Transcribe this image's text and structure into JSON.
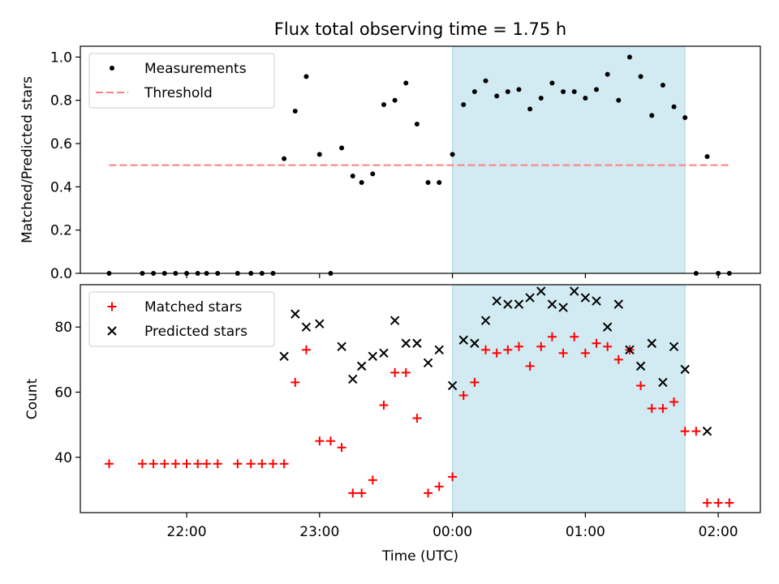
{
  "chart_data": [
    {
      "type": "scatter",
      "title": "Flux total observing time = 1.75 h",
      "xlabel": "",
      "ylabel": "Matched/Predicted stars",
      "xlim": [
        "21:12",
        "02:19"
      ],
      "ylim": [
        0,
        1.05
      ],
      "yticks": [
        "0.0",
        "0.2",
        "0.4",
        "0.6",
        "0.8",
        "1.0"
      ],
      "grid": false,
      "legend_position": "top-left",
      "shaded_interval": {
        "start": "00:00",
        "end": "01:45",
        "color": "#add8e6"
      },
      "series": [
        {
          "name": "Measurements",
          "marker": "dot",
          "color": "#000000",
          "points": [
            [
              "21:25",
              0.0
            ],
            [
              "21:40",
              0.0
            ],
            [
              "21:45",
              0.0
            ],
            [
              "21:50",
              0.0
            ],
            [
              "21:55",
              0.0
            ],
            [
              "22:00",
              0.0
            ],
            [
              "22:05",
              0.0
            ],
            [
              "22:09",
              0.0
            ],
            [
              "22:14",
              0.0
            ],
            [
              "22:23",
              0.0
            ],
            [
              "22:29",
              0.0
            ],
            [
              "22:34",
              0.0
            ],
            [
              "22:39",
              0.0
            ],
            [
              "22:44",
              0.53
            ],
            [
              "22:49",
              0.75
            ],
            [
              "22:54",
              0.91
            ],
            [
              "23:00",
              0.55
            ],
            [
              "23:05",
              0.0
            ],
            [
              "23:10",
              0.58
            ],
            [
              "23:15",
              0.45
            ],
            [
              "23:19",
              0.42
            ],
            [
              "23:24",
              0.46
            ],
            [
              "23:29",
              0.78
            ],
            [
              "23:34",
              0.8
            ],
            [
              "23:39",
              0.88
            ],
            [
              "23:44",
              0.69
            ],
            [
              "23:49",
              0.42
            ],
            [
              "23:54",
              0.42
            ],
            [
              "00:00",
              0.55
            ],
            [
              "00:05",
              0.78
            ],
            [
              "00:10",
              0.84
            ],
            [
              "00:15",
              0.89
            ],
            [
              "00:20",
              0.82
            ],
            [
              "00:25",
              0.84
            ],
            [
              "00:30",
              0.85
            ],
            [
              "00:35",
              0.76
            ],
            [
              "00:40",
              0.81
            ],
            [
              "00:45",
              0.88
            ],
            [
              "00:50",
              0.84
            ],
            [
              "00:55",
              0.84
            ],
            [
              "01:00",
              0.81
            ],
            [
              "01:05",
              0.85
            ],
            [
              "01:10",
              0.92
            ],
            [
              "01:15",
              0.8
            ],
            [
              "01:20",
              1.0
            ],
            [
              "01:25",
              0.91
            ],
            [
              "01:30",
              0.73
            ],
            [
              "01:35",
              0.87
            ],
            [
              "01:40",
              0.77
            ],
            [
              "01:45",
              0.72
            ],
            [
              "01:50",
              0.0
            ],
            [
              "01:55",
              0.54
            ],
            [
              "02:00",
              0.0
            ],
            [
              "02:05",
              0.0
            ]
          ]
        },
        {
          "name": "Threshold",
          "marker": "dashed-line",
          "color": "#ff7f7f",
          "points": [
            [
              "21:25",
              0.5
            ],
            [
              "02:05",
              0.5
            ]
          ]
        }
      ]
    },
    {
      "type": "scatter",
      "title": "",
      "xlabel": "Time (UTC)",
      "ylabel": "Count",
      "xlim": [
        "21:12",
        "02:19"
      ],
      "ylim": [
        23,
        93
      ],
      "yticks": [
        "40",
        "60",
        "80"
      ],
      "xticks": [
        "22:00",
        "23:00",
        "00:00",
        "01:00",
        "02:00"
      ],
      "grid": false,
      "legend_position": "top-left",
      "shaded_interval": {
        "start": "00:00",
        "end": "01:45",
        "color": "#add8e6"
      },
      "series": [
        {
          "name": "Matched stars",
          "marker": "plus",
          "color": "#ff0000",
          "points": [
            [
              "21:25",
              38
            ],
            [
              "21:40",
              38
            ],
            [
              "21:45",
              38
            ],
            [
              "21:50",
              38
            ],
            [
              "21:55",
              38
            ],
            [
              "22:00",
              38
            ],
            [
              "22:05",
              38
            ],
            [
              "22:09",
              38
            ],
            [
              "22:14",
              38
            ],
            [
              "22:23",
              38
            ],
            [
              "22:29",
              38
            ],
            [
              "22:34",
              38
            ],
            [
              "22:39",
              38
            ],
            [
              "22:44",
              38
            ],
            [
              "22:49",
              63
            ],
            [
              "22:54",
              73
            ],
            [
              "23:00",
              45
            ],
            [
              "23:05",
              45
            ],
            [
              "23:10",
              43
            ],
            [
              "23:15",
              29
            ],
            [
              "23:19",
              29
            ],
            [
              "23:24",
              33
            ],
            [
              "23:29",
              56
            ],
            [
              "23:34",
              66
            ],
            [
              "23:39",
              66
            ],
            [
              "23:44",
              52
            ],
            [
              "23:49",
              29
            ],
            [
              "23:54",
              31
            ],
            [
              "00:00",
              34
            ],
            [
              "00:05",
              59
            ],
            [
              "00:10",
              63
            ],
            [
              "00:15",
              73
            ],
            [
              "00:20",
              72
            ],
            [
              "00:25",
              73
            ],
            [
              "00:30",
              74
            ],
            [
              "00:35",
              68
            ],
            [
              "00:40",
              74
            ],
            [
              "00:45",
              77
            ],
            [
              "00:50",
              72
            ],
            [
              "00:55",
              77
            ],
            [
              "01:00",
              72
            ],
            [
              "01:05",
              75
            ],
            [
              "01:10",
              74
            ],
            [
              "01:15",
              70
            ],
            [
              "01:20",
              73
            ],
            [
              "01:25",
              62
            ],
            [
              "01:30",
              55
            ],
            [
              "01:35",
              55
            ],
            [
              "01:40",
              57
            ],
            [
              "01:45",
              48
            ],
            [
              "01:50",
              48
            ],
            [
              "01:55",
              26
            ],
            [
              "02:00",
              26
            ],
            [
              "02:05",
              26
            ]
          ]
        },
        {
          "name": "Predicted stars",
          "marker": "x",
          "color": "#000000",
          "points": [
            [
              "22:44",
              71
            ],
            [
              "22:49",
              84
            ],
            [
              "22:54",
              80
            ],
            [
              "23:00",
              81
            ],
            [
              "23:10",
              74
            ],
            [
              "23:15",
              64
            ],
            [
              "23:19",
              68
            ],
            [
              "23:24",
              71
            ],
            [
              "23:29",
              72
            ],
            [
              "23:34",
              82
            ],
            [
              "23:39",
              75
            ],
            [
              "23:44",
              75
            ],
            [
              "23:49",
              69
            ],
            [
              "23:54",
              73
            ],
            [
              "00:00",
              62
            ],
            [
              "00:05",
              76
            ],
            [
              "00:10",
              75
            ],
            [
              "00:15",
              82
            ],
            [
              "00:20",
              88
            ],
            [
              "00:25",
              87
            ],
            [
              "00:30",
              87
            ],
            [
              "00:35",
              89
            ],
            [
              "00:40",
              91
            ],
            [
              "00:45",
              87
            ],
            [
              "00:50",
              86
            ],
            [
              "00:55",
              91
            ],
            [
              "01:00",
              89
            ],
            [
              "01:05",
              88
            ],
            [
              "01:10",
              80
            ],
            [
              "01:15",
              87
            ],
            [
              "01:20",
              73
            ],
            [
              "01:25",
              68
            ],
            [
              "01:30",
              75
            ],
            [
              "01:35",
              63
            ],
            [
              "01:40",
              74
            ],
            [
              "01:45",
              67
            ],
            [
              "01:55",
              48
            ]
          ]
        }
      ]
    }
  ]
}
